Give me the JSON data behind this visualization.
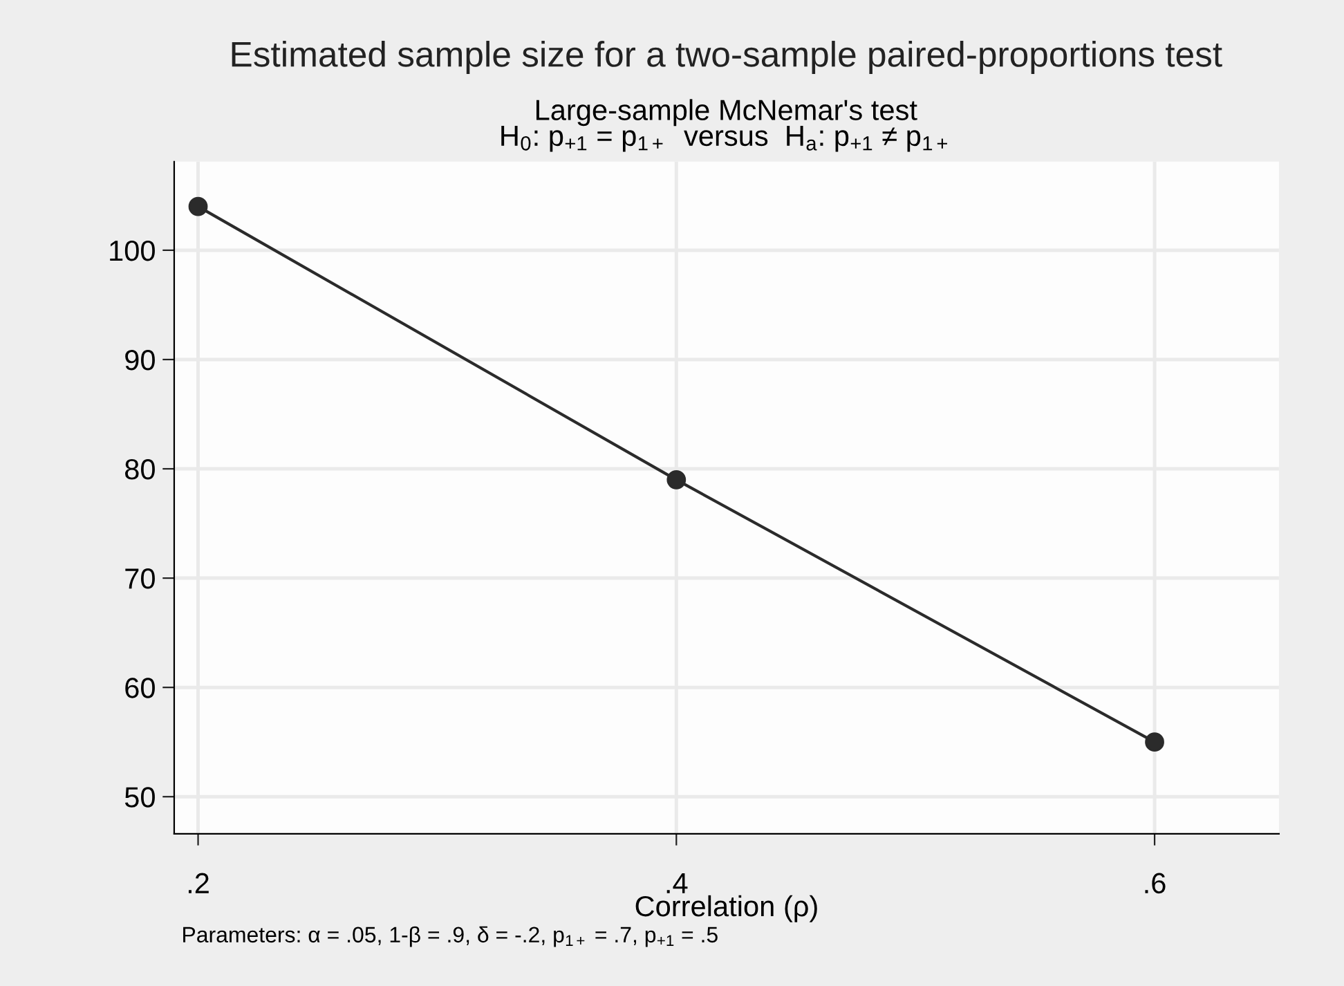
{
  "chart_data": {
    "type": "line",
    "title": "Estimated sample size for a two-sample paired-proportions test",
    "subtitle": "Large-sample McNemar's test\nH$_{0}$: p$_{+1}$ = p$_{1+}$  versus  H$_{a}$: p$_{+1}$ ≠ p$_{1+}$",
    "xlabel": "Correlation (ρ)",
    "annotations": [
      "Parameters: α = .05, 1-β = .9, δ = -.2, p$_{1+}$ = .7, p$_{+1}$ = .5"
    ],
    "x": [
      0.2,
      0.4,
      0.6
    ],
    "series": [
      {
        "color": "#2b2b2b",
        "values": [
          104,
          79,
          55
        ]
      }
    ],
    "xlim": [
      0.19,
      0.652
    ],
    "ylim": [
      46.6,
      108.1
    ],
    "xticks": [
      {
        "value": 0.2,
        "label": ".2"
      },
      {
        "value": 0.4,
        "label": ".4"
      },
      {
        "value": 0.6,
        "label": ".6"
      }
    ],
    "yticks": [
      50,
      60,
      70,
      80,
      90,
      100
    ],
    "grid": true,
    "marker": "circle",
    "line_style": "solid",
    "legend": false
  }
}
